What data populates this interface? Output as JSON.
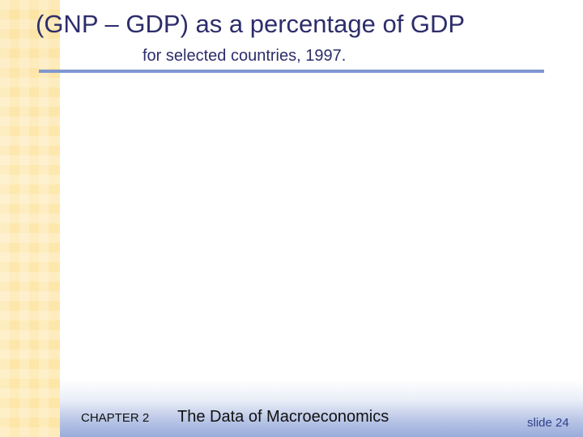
{
  "slide": {
    "title": "(GNP – GDP) as a percentage of GDP",
    "subtitle": "for selected countries, 1997."
  },
  "footer": {
    "chapter": "CHAPTER 2",
    "book_title": "The Data of Macroeconomics",
    "slide_number": "slide 24"
  },
  "colors": {
    "title_text": "#2d2d6b",
    "rule": "#7f96d0",
    "left_strip": "#fde6a6",
    "footer_gradient_end": "#98acda"
  }
}
